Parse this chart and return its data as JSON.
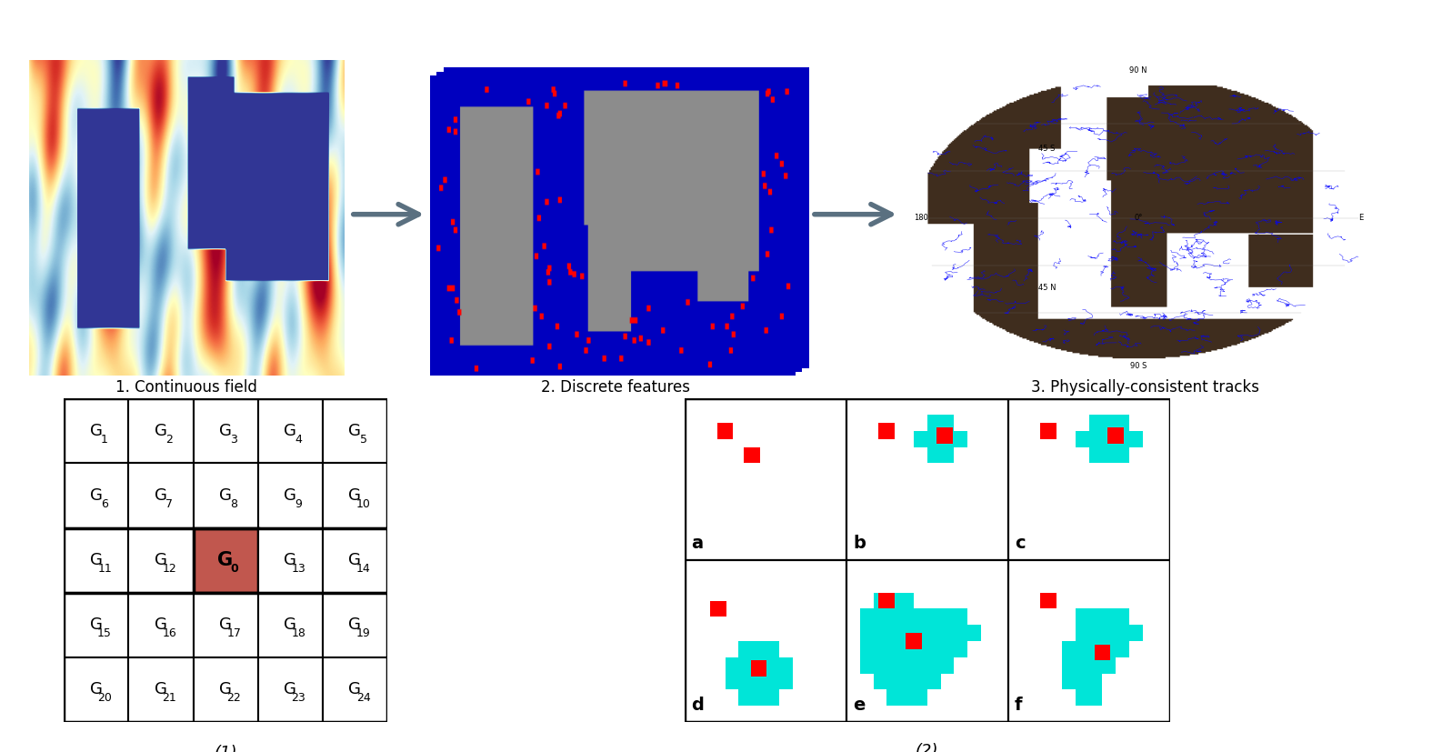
{
  "top_labels": [
    "1. Continuous field",
    "2. Discrete features",
    "3. Physically-consistent tracks"
  ],
  "bottom_label1": "(1)",
  "bottom_label2": "(2)",
  "grid_labels": [
    [
      "G_1",
      "G_2",
      "G_3",
      "G_4",
      "G_5"
    ],
    [
      "G_6",
      "G_7",
      "G_8",
      "G_9",
      "G_10"
    ],
    [
      "G_11",
      "G_12",
      "G_0",
      "G_13",
      "G_14"
    ],
    [
      "G_15",
      "G_16",
      "G_17",
      "G_18",
      "G_19"
    ],
    [
      "G_20",
      "G_21",
      "G_22",
      "G_23",
      "G_24"
    ]
  ],
  "g0_row": 2,
  "g0_col": 2,
  "g0_color": "#c1574e",
  "cyan_color": "#00e5d8",
  "red_color": "#ff0000",
  "bg_color": "#ffffff",
  "arrow_color": "#5a7080"
}
